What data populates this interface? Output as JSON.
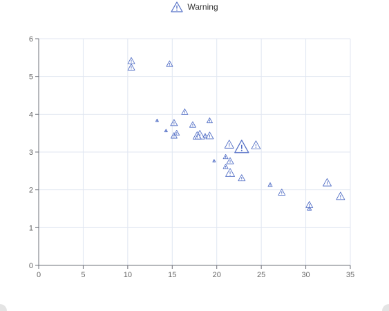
{
  "colors": {
    "series": "#5470c6",
    "grid": "#e0e6f1",
    "axis": "#6e7079"
  },
  "legend": {
    "icon": "warning-triangle-icon",
    "label": "Warning"
  },
  "chart_data": {
    "type": "scatter",
    "title": "",
    "xlabel": "",
    "ylabel": "",
    "xlim": [
      0,
      35
    ],
    "ylim": [
      0,
      6
    ],
    "xticks": [
      0,
      5,
      10,
      15,
      20,
      25,
      30,
      35
    ],
    "yticks": [
      0,
      1,
      2,
      3,
      4,
      5,
      6
    ],
    "grid": true,
    "legend_position": "top-center",
    "marker": "warning-triangle",
    "series": [
      {
        "name": "Warning",
        "points": [
          {
            "x": 10.4,
            "y": 5.42,
            "size": 10
          },
          {
            "x": 10.4,
            "y": 5.25,
            "size": 10
          },
          {
            "x": 14.7,
            "y": 5.34,
            "size": 9
          },
          {
            "x": 16.4,
            "y": 4.07,
            "size": 9
          },
          {
            "x": 19.2,
            "y": 3.84,
            "size": 8
          },
          {
            "x": 13.3,
            "y": 3.84,
            "size": 4
          },
          {
            "x": 15.2,
            "y": 3.78,
            "size": 10
          },
          {
            "x": 17.3,
            "y": 3.73,
            "size": 9
          },
          {
            "x": 14.3,
            "y": 3.57,
            "size": 4
          },
          {
            "x": 15.5,
            "y": 3.51,
            "size": 8
          },
          {
            "x": 15.2,
            "y": 3.44,
            "size": 9
          },
          {
            "x": 18.1,
            "y": 3.46,
            "size": 14
          },
          {
            "x": 17.8,
            "y": 3.44,
            "size": 12
          },
          {
            "x": 18.7,
            "y": 3.44,
            "size": 6
          },
          {
            "x": 19.2,
            "y": 3.44,
            "size": 11
          },
          {
            "x": 21.4,
            "y": 3.21,
            "size": 13
          },
          {
            "x": 22.8,
            "y": 3.15,
            "size": 20
          },
          {
            "x": 24.4,
            "y": 3.19,
            "size": 13
          },
          {
            "x": 21.0,
            "y": 2.88,
            "size": 7
          },
          {
            "x": 21.5,
            "y": 2.77,
            "size": 10
          },
          {
            "x": 19.7,
            "y": 2.77,
            "size": 4
          },
          {
            "x": 21.0,
            "y": 2.62,
            "size": 7
          },
          {
            "x": 21.5,
            "y": 2.46,
            "size": 13
          },
          {
            "x": 22.8,
            "y": 2.32,
            "size": 10
          },
          {
            "x": 26.0,
            "y": 2.14,
            "size": 6
          },
          {
            "x": 32.4,
            "y": 2.2,
            "size": 12
          },
          {
            "x": 27.3,
            "y": 1.94,
            "size": 10
          },
          {
            "x": 33.9,
            "y": 1.84,
            "size": 12
          },
          {
            "x": 30.4,
            "y": 1.61,
            "size": 10
          },
          {
            "x": 30.4,
            "y": 1.51,
            "size": 6
          }
        ]
      }
    ]
  }
}
